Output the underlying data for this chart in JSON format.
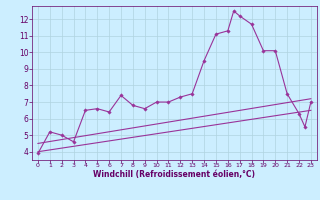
{
  "background_color": "#cceeff",
  "grid_color": "#b0d4e0",
  "line_color": "#993399",
  "marker_color": "#993399",
  "xlabel": "Windchill (Refroidissement éolien,°C)",
  "xlabel_color": "#660066",
  "tick_color": "#660066",
  "ylim": [
    3.5,
    12.8
  ],
  "xlim": [
    -0.5,
    23.5
  ],
  "yticks": [
    4,
    5,
    6,
    7,
    8,
    9,
    10,
    11,
    12
  ],
  "xticks": [
    0,
    1,
    2,
    3,
    4,
    5,
    6,
    7,
    8,
    9,
    10,
    11,
    12,
    13,
    14,
    15,
    16,
    17,
    18,
    19,
    20,
    21,
    22,
    23
  ],
  "series_main": [
    [
      0,
      3.9
    ],
    [
      1,
      5.2
    ],
    [
      2,
      5.0
    ],
    [
      3,
      4.6
    ],
    [
      4,
      6.5
    ],
    [
      5,
      6.6
    ],
    [
      6,
      6.4
    ],
    [
      7,
      7.4
    ],
    [
      8,
      6.8
    ],
    [
      9,
      6.6
    ],
    [
      10,
      7.0
    ],
    [
      11,
      7.0
    ],
    [
      12,
      7.3
    ],
    [
      13,
      7.5
    ],
    [
      14,
      9.5
    ],
    [
      15,
      11.1
    ],
    [
      16,
      11.3
    ],
    [
      16.5,
      12.5
    ],
    [
      17,
      12.2
    ],
    [
      18,
      11.7
    ],
    [
      19,
      10.1
    ],
    [
      20,
      10.1
    ],
    [
      21,
      7.5
    ],
    [
      22,
      6.3
    ],
    [
      22.5,
      5.5
    ],
    [
      23,
      7.0
    ]
  ],
  "line_lower": [
    [
      0,
      4.0
    ],
    [
      23,
      6.5
    ]
  ],
  "line_upper": [
    [
      0,
      4.5
    ],
    [
      23,
      7.2
    ]
  ]
}
